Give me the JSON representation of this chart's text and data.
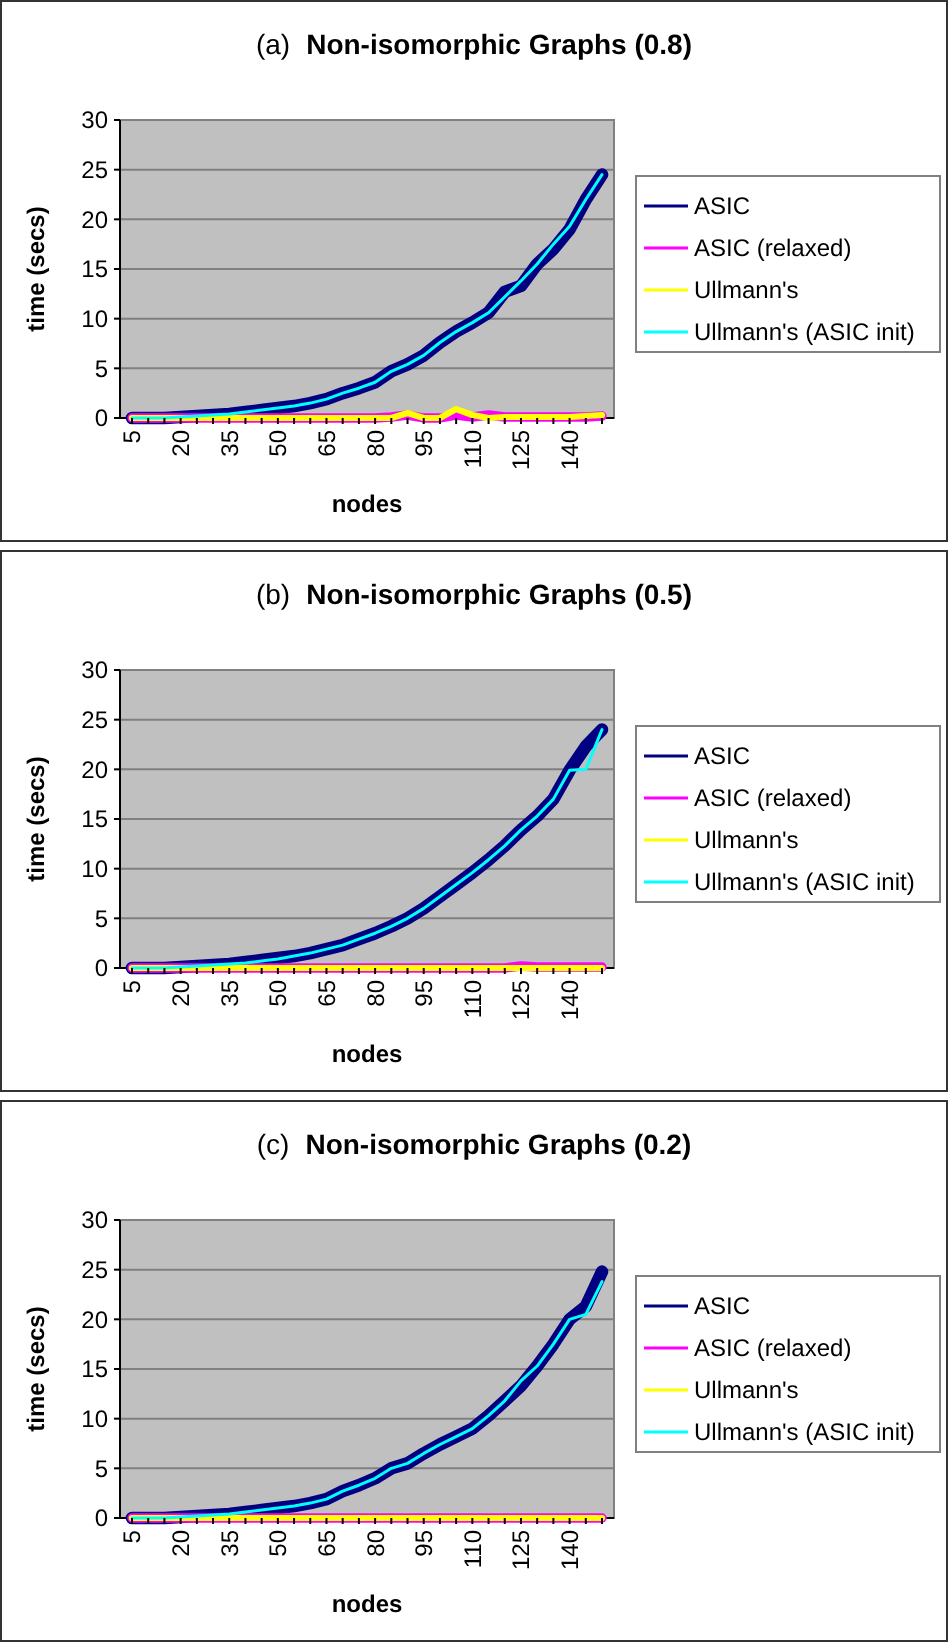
{
  "chart_data": [
    {
      "type": "line",
      "title": "(a) Non-isomorphic Graphs (0.8)",
      "xlabel": "nodes",
      "ylabel": "time (secs)",
      "categories": [
        "5",
        null,
        null,
        "20",
        null,
        null,
        "35",
        null,
        null,
        "50",
        null,
        null,
        "65",
        null,
        null,
        "80",
        null,
        null,
        "95",
        null,
        null,
        "110",
        null,
        null,
        "125",
        null,
        null,
        "140",
        null,
        null
      ],
      "ylim": [
        0,
        30
      ],
      "yticks": [
        0,
        5,
        10,
        15,
        20,
        25,
        30
      ],
      "grid": "y",
      "legend": "right",
      "marker": "none",
      "series": [
        {
          "name": "ASIC",
          "color": "#000080",
          "values": [
            0,
            0,
            0,
            0.1,
            0.2,
            0.3,
            0.4,
            0.6,
            0.8,
            1.0,
            1.2,
            1.5,
            1.9,
            2.5,
            3.0,
            3.6,
            4.7,
            5.4,
            6.3,
            7.6,
            8.7,
            9.6,
            10.6,
            12.7,
            13.3,
            15.5,
            17,
            19,
            22,
            24.5
          ]
        },
        {
          "name": "ASIC (relaxed)",
          "color": "#ff00ff",
          "values": [
            0,
            0,
            0,
            0,
            0,
            0,
            0,
            0,
            0,
            0,
            0,
            0,
            0,
            0,
            0,
            0,
            0.1,
            0.3,
            0,
            0,
            0.3,
            0.1,
            0.3,
            0.1,
            0.1,
            0.1,
            0.1,
            0.1,
            0.1,
            0.2
          ]
        },
        {
          "name": "Ullmann's",
          "color": "#ffff00",
          "values": [
            0,
            0,
            0,
            0,
            0,
            0,
            0,
            0,
            0,
            0,
            0,
            0,
            0,
            0,
            0,
            0,
            0,
            0.5,
            0,
            0,
            0.9,
            0.3,
            0,
            0.1,
            0.1,
            0.1,
            0.1,
            0.1,
            0.2,
            0.3
          ]
        },
        {
          "name": "Ullmann's (ASIC init)",
          "color": "#00ffff",
          "values": [
            0,
            0,
            0,
            0.1,
            0.2,
            0.3,
            0.4,
            0.6,
            0.8,
            1.0,
            1.2,
            1.5,
            1.9,
            2.5,
            3.0,
            3.6,
            4.7,
            5.4,
            6.3,
            7.6,
            8.7,
            9.6,
            10.6,
            12.2,
            13.8,
            15.5,
            17.5,
            19.3,
            22,
            24.5
          ]
        }
      ]
    },
    {
      "type": "line",
      "title": "(b) Non-isomorphic Graphs (0.5)",
      "xlabel": "nodes",
      "ylabel": "time (secs)",
      "categories": [
        "5",
        null,
        null,
        "20",
        null,
        null,
        "35",
        null,
        null,
        "50",
        null,
        null,
        "65",
        null,
        null,
        "80",
        null,
        null,
        "95",
        null,
        null,
        "110",
        null,
        null,
        "125",
        null,
        null,
        "140",
        null,
        null
      ],
      "ylim": [
        0,
        30
      ],
      "yticks": [
        0,
        5,
        10,
        15,
        20,
        25,
        30
      ],
      "grid": "y",
      "legend": "right",
      "marker": "none",
      "series": [
        {
          "name": "ASIC",
          "color": "#000080",
          "values": [
            0,
            0,
            0,
            0.1,
            0.2,
            0.3,
            0.4,
            0.6,
            0.8,
            1.0,
            1.2,
            1.5,
            1.9,
            2.3,
            2.9,
            3.5,
            4.2,
            5.0,
            6.0,
            7.2,
            8.4,
            9.6,
            10.9,
            12.3,
            13.9,
            15.3,
            17,
            19.9,
            22.3,
            24
          ]
        },
        {
          "name": "ASIC (relaxed)",
          "color": "#ff00ff",
          "values": [
            0,
            0,
            0,
            0,
            0,
            0,
            0,
            0,
            0,
            0,
            0,
            0,
            0,
            0,
            0,
            0,
            0,
            0,
            0,
            0,
            0,
            0,
            0,
            0,
            0.2,
            0.1,
            0.1,
            0.1,
            0.1,
            0.1
          ]
        },
        {
          "name": "Ullmann's",
          "color": "#ffff00",
          "values": [
            0,
            0,
            0,
            0,
            0,
            0,
            0,
            0,
            0,
            0,
            0,
            0,
            0,
            0,
            0,
            0,
            0,
            0,
            0,
            0,
            0,
            0,
            0,
            0,
            0,
            0,
            0,
            0,
            0,
            0
          ]
        },
        {
          "name": "Ullmann's (ASIC init)",
          "color": "#00ffff",
          "values": [
            0,
            0,
            0,
            0.1,
            0.2,
            0.3,
            0.4,
            0.5,
            0.7,
            0.9,
            1.2,
            1.5,
            1.9,
            2.3,
            2.9,
            3.5,
            4.2,
            5.0,
            6.0,
            7.2,
            8.4,
            9.6,
            10.9,
            12.3,
            13.9,
            15.3,
            17,
            19.9,
            20,
            24
          ]
        }
      ]
    },
    {
      "type": "line",
      "title": "(c) Non-isomorphic Graphs (0.2)",
      "xlabel": "nodes",
      "ylabel": "time (secs)",
      "categories": [
        "5",
        null,
        null,
        "20",
        null,
        null,
        "35",
        null,
        null,
        "50",
        null,
        null,
        "65",
        null,
        null,
        "80",
        null,
        null,
        "95",
        null,
        null,
        "110",
        null,
        null,
        "125",
        null,
        null,
        "140",
        null,
        null
      ],
      "ylim": [
        0,
        30
      ],
      "yticks": [
        0,
        5,
        10,
        15,
        20,
        25,
        30
      ],
      "grid": "y",
      "legend": "right",
      "marker": "none",
      "series": [
        {
          "name": "ASIC",
          "color": "#000080",
          "values": [
            0,
            0,
            0,
            0.1,
            0.2,
            0.3,
            0.4,
            0.6,
            0.8,
            1.0,
            1.2,
            1.5,
            1.9,
            2.7,
            3.3,
            4.0,
            5.0,
            5.5,
            6.5,
            7.4,
            8.2,
            9.0,
            10.3,
            11.8,
            13.3,
            15.3,
            17.5,
            20,
            21.3,
            24.8
          ]
        },
        {
          "name": "ASIC (relaxed)",
          "color": "#ff00ff",
          "values": [
            0,
            0,
            0,
            0,
            0,
            0,
            0,
            0,
            0,
            0,
            0,
            0,
            0,
            0,
            0,
            0,
            0,
            0,
            0,
            0,
            0,
            0,
            0,
            0,
            0,
            0,
            0,
            0,
            0,
            0
          ]
        },
        {
          "name": "Ullmann's",
          "color": "#ffff00",
          "values": [
            0,
            0,
            0,
            0,
            0,
            0,
            0,
            0,
            0,
            0,
            0,
            0,
            0,
            0,
            0,
            0,
            0,
            0,
            0,
            0,
            0,
            0,
            0,
            0,
            0,
            0,
            0,
            0,
            0,
            0
          ]
        },
        {
          "name": "Ullmann's (ASIC init)",
          "color": "#00ffff",
          "values": [
            0,
            0,
            0,
            0.1,
            0.2,
            0.3,
            0.4,
            0.6,
            0.8,
            1.0,
            1.2,
            1.5,
            1.9,
            2.7,
            3.3,
            4.0,
            5.0,
            5.5,
            6.5,
            7.4,
            8.2,
            9.0,
            10.3,
            11.8,
            13.8,
            15.3,
            17.5,
            20,
            20.5,
            23.8
          ]
        }
      ]
    }
  ]
}
